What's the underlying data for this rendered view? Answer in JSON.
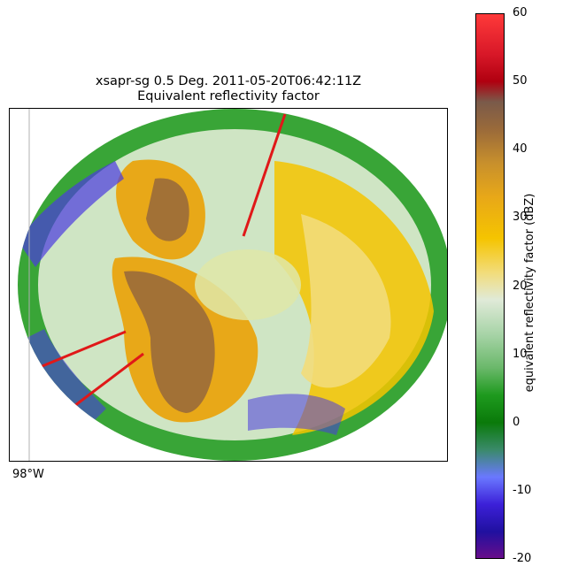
{
  "chart_data": {
    "type": "heatmap",
    "title_line1": "xsapr-sg 0.5 Deg. 2011-05-20T06:42:11Z",
    "title_line2": "Equivalent reflectivity factor",
    "lon_labels": [
      "98°W"
    ],
    "colorbar": {
      "label": "equivalent reflectivity factor (dBZ)",
      "range": [
        -20,
        60
      ],
      "ticks": [
        -20,
        -10,
        0,
        10,
        20,
        30,
        40,
        50,
        60
      ],
      "colormap_stops": [
        {
          "v": -20,
          "color": "#6a0d8a"
        },
        {
          "v": -16,
          "color": "#2010a0"
        },
        {
          "v": -12,
          "color": "#3c20d8"
        },
        {
          "v": -8,
          "color": "#6a78ff"
        },
        {
          "v": -4,
          "color": "#3a8a6a"
        },
        {
          "v": 0,
          "color": "#0a7a0a"
        },
        {
          "v": 4,
          "color": "#1e9a1e"
        },
        {
          "v": 8,
          "color": "#6ab86a"
        },
        {
          "v": 13,
          "color": "#a8d4a8"
        },
        {
          "v": 18,
          "color": "#e0ead8"
        },
        {
          "v": 22,
          "color": "#f2dc7a"
        },
        {
          "v": 27,
          "color": "#f5c400"
        },
        {
          "v": 33,
          "color": "#e8a818"
        },
        {
          "v": 38,
          "color": "#c8902c"
        },
        {
          "v": 43,
          "color": "#9a6a3a"
        },
        {
          "v": 47,
          "color": "#7a5a4a"
        },
        {
          "v": 50,
          "color": "#b00010"
        },
        {
          "v": 54,
          "color": "#d81828"
        },
        {
          "v": 60,
          "color": "#ff3a3a"
        }
      ]
    }
  }
}
